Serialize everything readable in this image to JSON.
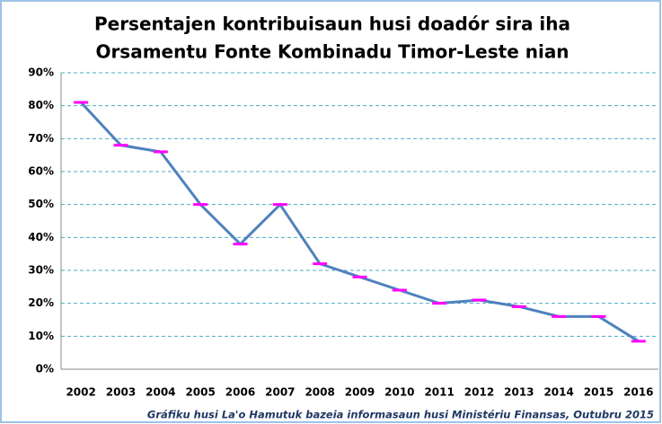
{
  "chart_data": {
    "type": "line",
    "title": [
      "Persentajen kontribuisaun husi doadór sira iha",
      "Orsamentu Fonte Kombinadu Timor-Leste nian"
    ],
    "note": "Gráfiku husi La'o Hamutuk bazeia informasaun husi Ministériu Finansas, Outubru 2015",
    "categories": [
      "2002",
      "2003",
      "2004",
      "2005",
      "2006",
      "2007",
      "2008",
      "2009",
      "2010",
      "2011",
      "2012",
      "2013",
      "2014",
      "2015",
      "2016"
    ],
    "series": [
      {
        "name": "Persentajen",
        "color": "#4f81bd",
        "marker_color": "#ff00ff",
        "values": [
          81,
          68,
          66,
          50,
          38,
          50,
          32,
          28,
          24,
          20,
          21,
          19,
          16,
          16,
          8.5
        ]
      }
    ],
    "ylim": [
      0,
      90
    ],
    "yticks": [
      {
        "value": 0,
        "label": "0%"
      },
      {
        "value": 10,
        "label": "10%"
      },
      {
        "value": 20,
        "label": "20%"
      },
      {
        "value": 30,
        "label": "30%"
      },
      {
        "value": 40,
        "label": "40%"
      },
      {
        "value": 50,
        "label": "50%"
      },
      {
        "value": 60,
        "label": "60%"
      },
      {
        "value": 70,
        "label": "70%"
      },
      {
        "value": 80,
        "label": "80%"
      },
      {
        "value": 90,
        "label": "90%"
      }
    ],
    "grid": true,
    "grid_color": "#4bacc6"
  }
}
